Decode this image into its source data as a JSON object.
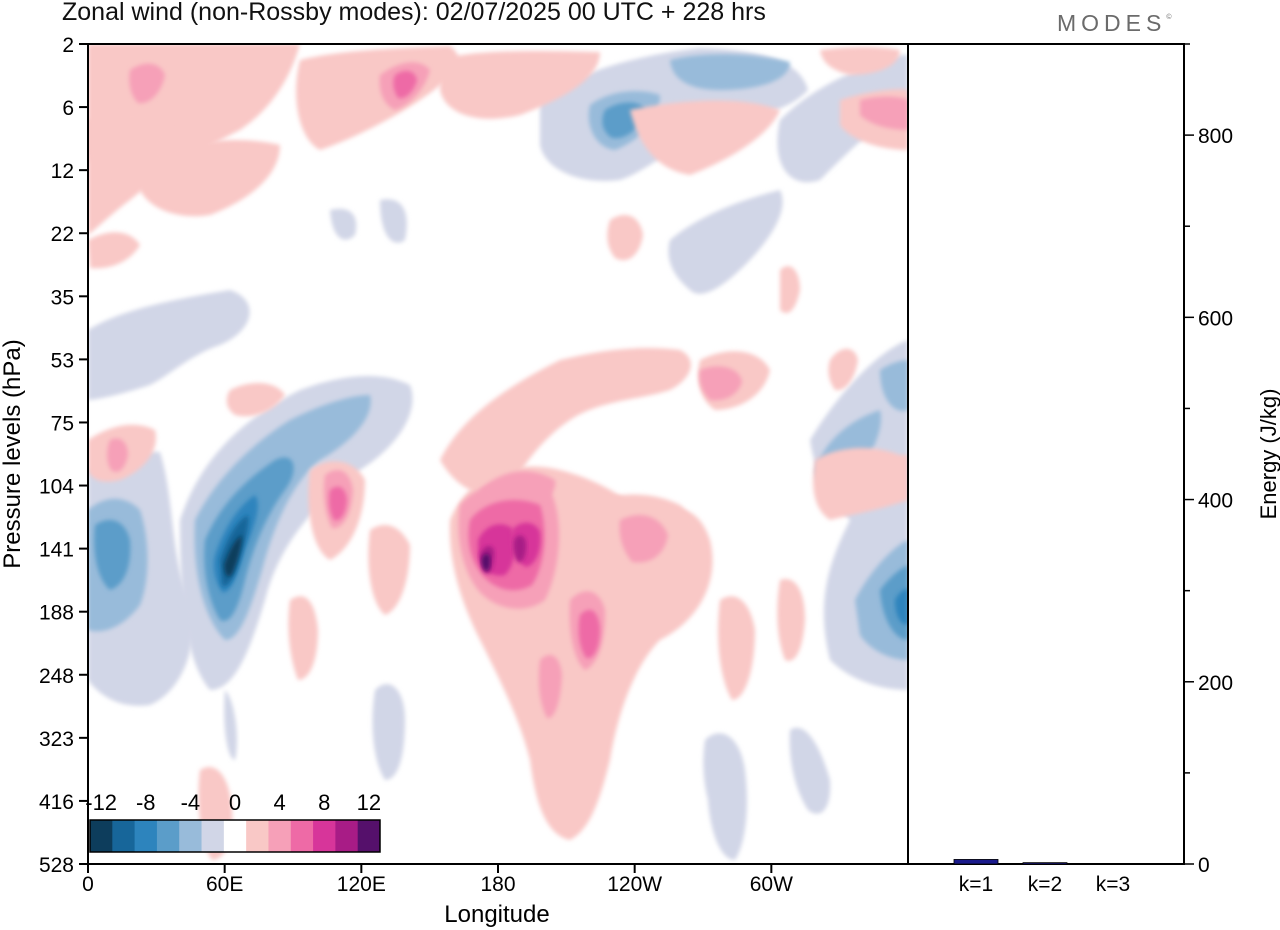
{
  "title": "Zonal wind (non-Rossby modes):  02/07/2025  00 UTC  + 228 hrs",
  "brand": "MODES",
  "brand_mark": "©",
  "chart_data": [
    {
      "type": "heatmap",
      "title": "Zonal wind (non-Rossby modes):  02/07/2025  00 UTC  + 228 hrs",
      "xlabel": "Longitude",
      "ylabel": "Pressure levels (hPa)",
      "x_ticks": [
        "0",
        "60E",
        "120E",
        "180",
        "120W",
        "60W"
      ],
      "x_tick_degrees": [
        0,
        60,
        120,
        180,
        240,
        300
      ],
      "xlim": [
        0,
        360
      ],
      "y_ticks": [
        "2",
        "6",
        "12",
        "22",
        "35",
        "53",
        "75",
        "104",
        "141",
        "188",
        "248",
        "323",
        "416",
        "528"
      ],
      "colorbar": {
        "labels": [
          "-12",
          "-8",
          "-4",
          "0",
          "4",
          "8",
          "12"
        ],
        "levels": [
          -14,
          -12,
          -10,
          -8,
          -6,
          -4,
          -2,
          2,
          4,
          6,
          8,
          10,
          12,
          14
        ],
        "colors": [
          "#0d3d5c",
          "#17669a",
          "#2d84bd",
          "#5b9dc9",
          "#98bbda",
          "#d1d6e7",
          "#ffffff",
          "#f9c8c6",
          "#f6a0b8",
          "#ee6aa6",
          "#d7359a",
          "#a81c86",
          "#55106b"
        ]
      },
      "features": [
        {
          "name": "negative jet core",
          "lon": 60,
          "level": "141",
          "value": -14
        },
        {
          "name": "negative core west",
          "lon": 10,
          "level": "141",
          "value": -10
        },
        {
          "name": "negative core east edge",
          "lon": 355,
          "level": "188",
          "value": -10
        },
        {
          "name": "negative upper core",
          "lon": 235,
          "level": "6",
          "value": -10
        },
        {
          "name": "negative upper core",
          "lon": 275,
          "level": "2",
          "value": -8
        },
        {
          "name": "positive core",
          "lon": 178,
          "level": "141",
          "value": 14
        },
        {
          "name": "positive core",
          "lon": 192,
          "level": "141",
          "value": 12
        },
        {
          "name": "positive core",
          "lon": 110,
          "level": "104",
          "value": 8
        },
        {
          "name": "positive core",
          "lon": 225,
          "level": "188",
          "value": 8
        },
        {
          "name": "positive core",
          "lon": 255,
          "level": "141",
          "value": 6
        }
      ]
    },
    {
      "type": "bar",
      "categories": [
        "k=1",
        "k=2",
        "k=3"
      ],
      "values": [
        5,
        1.5,
        0.5
      ],
      "ylabel": "Energy (J/kg)",
      "ylim": [
        0,
        900
      ],
      "y_ticks": [
        "0",
        "200",
        "400",
        "600",
        "800"
      ],
      "bar_color": "#1a1a8c"
    }
  ]
}
